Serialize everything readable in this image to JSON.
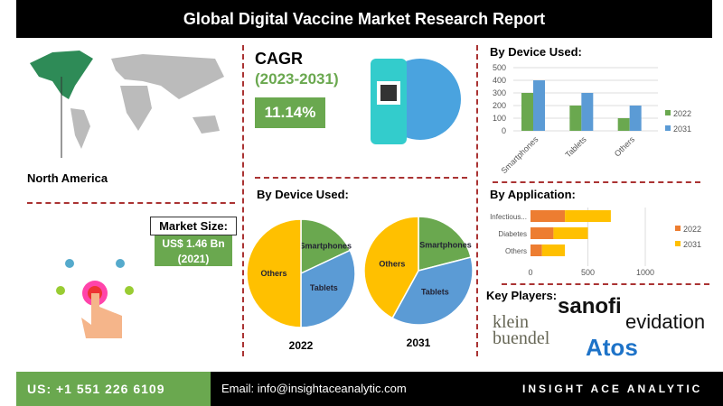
{
  "title": "Global Digital Vaccine Market Research Report",
  "region": "North America",
  "market_size": {
    "label": "Market Size:",
    "value": "US$ 1.46 Bn",
    "year": "(2021)"
  },
  "cagr": {
    "label": "CAGR",
    "period": "(2023-2031)",
    "value": "11.14%"
  },
  "key_players_label": "Key Players:",
  "key_players": [
    "sanofi",
    "evidation",
    "klein buendel",
    "Atos"
  ],
  "footer": {
    "phone": "US: +1 551 226 6109",
    "email": "Email: info@insightaceanalytic.com",
    "brand": "INSIGHT ACE ANALYTIC"
  },
  "colors": {
    "green": "#6aa84f",
    "blue": "#5b9bd5",
    "orange": "#ed7d31",
    "yellow": "#ffc000",
    "dash": "#aa3333"
  },
  "chart_data": [
    {
      "type": "bar",
      "title": "By Device Used:",
      "categories": [
        "Smartphones",
        "Tablets",
        "Others"
      ],
      "series": [
        {
          "name": "2022",
          "values": [
            300,
            200,
            100
          ],
          "color": "#6aa84f"
        },
        {
          "name": "2031",
          "values": [
            400,
            300,
            200
          ],
          "color": "#5b9bd5"
        }
      ],
      "ylim": [
        0,
        500
      ],
      "yticks": [
        0,
        100,
        200,
        300,
        400,
        500
      ],
      "grid": true,
      "legend": "right"
    },
    {
      "type": "bar",
      "orientation": "horizontal",
      "stacked": true,
      "title": "By Application:",
      "categories": [
        "Infectious...",
        "Diabetes",
        "Others"
      ],
      "series": [
        {
          "name": "2022",
          "values": [
            300,
            200,
            100
          ],
          "color": "#ed7d31"
        },
        {
          "name": "2031",
          "values": [
            400,
            300,
            200
          ],
          "color": "#ffc000"
        }
      ],
      "xlim": [
        0,
        1000
      ],
      "xticks": [
        0,
        500,
        1000
      ],
      "legend": "right"
    },
    {
      "type": "pie",
      "title": "By Device Used:",
      "pies": [
        {
          "label": "2022",
          "slices": [
            {
              "name": "Smartphones",
              "value": 18,
              "color": "#6aa84f"
            },
            {
              "name": "Tablets",
              "value": 32,
              "color": "#5b9bd5"
            },
            {
              "name": "Others",
              "value": 50,
              "color": "#ffc000"
            }
          ]
        },
        {
          "label": "2031",
          "slices": [
            {
              "name": "Smartphones",
              "value": 21,
              "color": "#6aa84f"
            },
            {
              "name": "Tablets",
              "value": 37,
              "color": "#5b9bd5"
            },
            {
              "name": "Others",
              "value": 42,
              "color": "#ffc000"
            }
          ]
        }
      ]
    }
  ]
}
